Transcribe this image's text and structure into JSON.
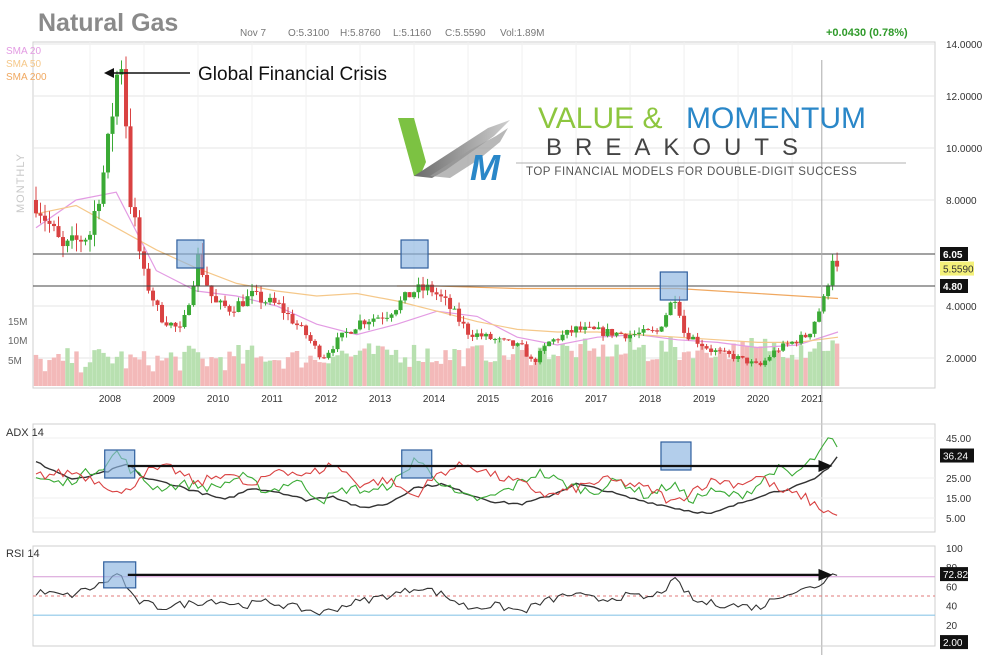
{
  "header": {
    "title": "Natural Gas",
    "date": "Nov 7",
    "open": "O:5.3100",
    "high": "H:5.8760",
    "low": "L:5.1160",
    "close": "C:5.5590",
    "volume": "Vol:1.89M",
    "change": "+0.0430 (0.78%)"
  },
  "legend": [
    {
      "label": "SMA 20",
      "color": "#e39be3"
    },
    {
      "label": "SMA 50",
      "color": "#f5c88a"
    },
    {
      "label": "SMA 200",
      "color": "#f0a860"
    }
  ],
  "timeframe_label": "MONTHLY",
  "annotation": "Global Financial Crisis",
  "logo": {
    "line1_a": "VALUE & ",
    "line1_b": "MOMENTUM",
    "line2": "BREAKOUTS",
    "tagline": "TOP FINANCIAL MODELS FOR DOUBLE-DIGIT SUCCESS"
  },
  "colors": {
    "up": "#3aaa35",
    "down": "#d94242",
    "vol_up": "#b8e0b0",
    "vol_down": "#f3b9b9",
    "box_fill": "#8ab4e0",
    "box_stroke": "#2f5f9e",
    "grid": "#e6e6e6"
  },
  "chart_data": [
    {
      "panel": "price",
      "type": "candlestick",
      "x_tick_labels": [
        "2008",
        "2009",
        "2010",
        "2011",
        "2012",
        "2013",
        "2014",
        "2015",
        "2016",
        "2017",
        "2018",
        "2019",
        "2020",
        "2021"
      ],
      "y_tick_labels": [
        "14.0000",
        "12.0000",
        "10.0000",
        "8.0000",
        "4.0000",
        "2.0000"
      ],
      "ylim": [
        1.0,
        14.0
      ],
      "horizontal_levels": [
        6.05,
        4.8
      ],
      "level_labels": [
        "6.05",
        "4.80"
      ],
      "last_price_label": "5.5590",
      "last_price": 5.559,
      "volume_tick_labels": [
        "15M",
        "10M",
        "5M"
      ],
      "series_anchors": {
        "x": [
          2007.0,
          2007.5,
          2008.0,
          2008.3,
          2008.5,
          2008.6,
          2008.75,
          2009.0,
          2009.3,
          2009.7,
          2010.0,
          2010.3,
          2010.6,
          2011.0,
          2011.5,
          2012.0,
          2012.3,
          2012.6,
          2013.0,
          2013.5,
          2014.0,
          2014.3,
          2014.6,
          2015.0,
          2015.5,
          2016.0,
          2016.2,
          2016.5,
          2017.0,
          2017.5,
          2018.0,
          2018.5,
          2018.85,
          2019.0,
          2019.5,
          2020.0,
          2020.4,
          2020.7,
          2021.0,
          2021.3,
          2021.6,
          2021.75,
          2021.85
        ],
        "price": [
          8.0,
          6.2,
          6.8,
          9.5,
          12.8,
          13.5,
          8.0,
          5.2,
          3.6,
          3.0,
          5.9,
          4.1,
          3.9,
          4.4,
          4.0,
          2.9,
          2.0,
          2.7,
          3.4,
          3.7,
          4.6,
          4.7,
          4.1,
          3.0,
          2.7,
          2.4,
          1.8,
          2.6,
          3.1,
          3.0,
          2.9,
          3.0,
          4.5,
          3.0,
          2.3,
          2.0,
          1.7,
          2.3,
          2.6,
          2.9,
          4.3,
          6.0,
          5.56
        ]
      },
      "sma_anchors": {
        "sma20": [
          7.0,
          8.0,
          8.3,
          5.4,
          4.6,
          4.4,
          4.0,
          3.3,
          2.9,
          3.3,
          3.8,
          3.6,
          2.8,
          2.5,
          2.8,
          2.9,
          2.7,
          2.6,
          2.4,
          2.5,
          3.0
        ],
        "sma50": [
          7.5,
          7.8,
          7.0,
          6.2,
          5.5,
          4.9,
          4.6,
          4.4,
          4.5,
          4.2,
          3.8,
          3.4,
          3.1,
          3.0,
          3.0,
          2.9,
          2.8,
          2.7,
          2.6,
          2.6,
          2.8
        ],
        "sma200": [
          null,
          null,
          null,
          null,
          null,
          null,
          null,
          null,
          null,
          4.8,
          4.8,
          4.75,
          4.7,
          4.7,
          4.7,
          4.7,
          4.7,
          4.6,
          4.5,
          4.4,
          4.3
        ]
      },
      "highlight_boxes": [
        {
          "x": 2009.85,
          "price": 6.05
        },
        {
          "x": 2014.0,
          "price": 6.05
        },
        {
          "x": 2018.8,
          "price": 4.8
        }
      ]
    },
    {
      "panel": "adx",
      "title": "ADX 14",
      "type": "line",
      "y_tick_labels": [
        "45.00",
        "36.24",
        "25.00",
        "15.00",
        "5.00"
      ],
      "ylim": [
        0,
        50
      ],
      "last_value_label": "36.24",
      "series": [
        {
          "name": "ADX",
          "color": "#333333",
          "anchors": [
            [
              2007.0,
              33
            ],
            [
              2007.7,
              24
            ],
            [
              2008.3,
              28
            ],
            [
              2008.7,
              32
            ],
            [
              2009.0,
              25
            ],
            [
              2009.5,
              22
            ],
            [
              2010.0,
              18
            ],
            [
              2010.5,
              14
            ],
            [
              2011.0,
              20
            ],
            [
              2011.5,
              18
            ],
            [
              2012.0,
              14
            ],
            [
              2012.5,
              16
            ],
            [
              2013.0,
              10
            ],
            [
              2013.5,
              12
            ],
            [
              2014.0,
              20
            ],
            [
              2014.5,
              22
            ],
            [
              2015.0,
              17
            ],
            [
              2015.5,
              13
            ],
            [
              2016.0,
              12
            ],
            [
              2016.5,
              16
            ],
            [
              2017.0,
              22
            ],
            [
              2017.5,
              19
            ],
            [
              2018.0,
              15
            ],
            [
              2018.5,
              12
            ],
            [
              2019.0,
              9
            ],
            [
              2019.5,
              7
            ],
            [
              2020.0,
              12
            ],
            [
              2020.5,
              17
            ],
            [
              2021.0,
              20
            ],
            [
              2021.4,
              24
            ],
            [
              2021.7,
              31
            ],
            [
              2021.85,
              36.2
            ]
          ]
        },
        {
          "name": "+DI",
          "color": "#3aaa35",
          "anchors": [
            [
              2007.0,
              25
            ],
            [
              2007.5,
              22
            ],
            [
              2008.3,
              32
            ],
            [
              2008.5,
              38
            ],
            [
              2008.8,
              28
            ],
            [
              2009.2,
              20
            ],
            [
              2009.8,
              22
            ],
            [
              2010.3,
              20
            ],
            [
              2010.8,
              26
            ],
            [
              2011.3,
              18
            ],
            [
              2011.8,
              24
            ],
            [
              2012.3,
              14
            ],
            [
              2012.8,
              20
            ],
            [
              2013.3,
              18
            ],
            [
              2013.8,
              26
            ],
            [
              2014.0,
              35
            ],
            [
              2014.3,
              28
            ],
            [
              2014.8,
              16
            ],
            [
              2015.3,
              14
            ],
            [
              2015.8,
              20
            ],
            [
              2016.3,
              28
            ],
            [
              2016.8,
              22
            ],
            [
              2017.3,
              18
            ],
            [
              2017.8,
              24
            ],
            [
              2018.3,
              16
            ],
            [
              2018.8,
              22
            ],
            [
              2019.1,
              14
            ],
            [
              2019.5,
              18
            ],
            [
              2020.0,
              16
            ],
            [
              2020.3,
              20
            ],
            [
              2020.7,
              30
            ],
            [
              2021.0,
              26
            ],
            [
              2021.3,
              32
            ],
            [
              2021.6,
              40
            ],
            [
              2021.7,
              46
            ],
            [
              2021.85,
              38
            ]
          ]
        },
        {
          "name": "-DI",
          "color": "#d94242",
          "anchors": [
            [
              2007.0,
              26
            ],
            [
              2007.7,
              28
            ],
            [
              2008.3,
              22
            ],
            [
              2008.6,
              16
            ],
            [
              2009.0,
              28
            ],
            [
              2009.5,
              30
            ],
            [
              2010.0,
              22
            ],
            [
              2010.5,
              28
            ],
            [
              2011.0,
              20
            ],
            [
              2011.5,
              30
            ],
            [
              2012.0,
              26
            ],
            [
              2012.5,
              32
            ],
            [
              2013.0,
              22
            ],
            [
              2013.5,
              24
            ],
            [
              2014.0,
              16
            ],
            [
              2014.5,
              28
            ],
            [
              2015.0,
              32
            ],
            [
              2015.5,
              26
            ],
            [
              2016.0,
              22
            ],
            [
              2016.5,
              16
            ],
            [
              2017.0,
              20
            ],
            [
              2017.5,
              24
            ],
            [
              2018.0,
              22
            ],
            [
              2018.5,
              18
            ],
            [
              2018.8,
              12
            ],
            [
              2019.2,
              20
            ],
            [
              2019.6,
              24
            ],
            [
              2020.0,
              22
            ],
            [
              2020.4,
              26
            ],
            [
              2020.8,
              18
            ],
            [
              2021.2,
              16
            ],
            [
              2021.5,
              10
            ],
            [
              2021.7,
              8
            ],
            [
              2021.85,
              5
            ]
          ]
        }
      ],
      "highlight_boxes": [
        {
          "x": 2008.55,
          "value": 32
        },
        {
          "x": 2014.05,
          "value": 32
        },
        {
          "x": 2018.85,
          "value": 36
        }
      ],
      "arrow_value": 32
    },
    {
      "panel": "rsi",
      "title": "RSI 14",
      "type": "line",
      "y_tick_labels": [
        "100",
        "80",
        "72.82",
        "60",
        "40",
        "20",
        "2.00"
      ],
      "ylim": [
        0,
        100
      ],
      "last_value_label": "72.82",
      "bottom_value_label": "2.00",
      "reference_levels": [
        70,
        50,
        30
      ],
      "series": [
        {
          "name": "RSI",
          "color": "#333333",
          "anchors": [
            [
              2007.0,
              54
            ],
            [
              2007.6,
              50
            ],
            [
              2008.2,
              62
            ],
            [
              2008.55,
              74
            ],
            [
              2008.8,
              46
            ],
            [
              2009.3,
              38
            ],
            [
              2009.8,
              42
            ],
            [
              2010.3,
              46
            ],
            [
              2010.8,
              40
            ],
            [
              2011.3,
              44
            ],
            [
              2011.8,
              38
            ],
            [
              2012.3,
              32
            ],
            [
              2012.8,
              42
            ],
            [
              2013.3,
              48
            ],
            [
              2013.8,
              54
            ],
            [
              2014.1,
              60
            ],
            [
              2014.5,
              52
            ],
            [
              2015.0,
              38
            ],
            [
              2015.5,
              40
            ],
            [
              2016.0,
              34
            ],
            [
              2016.4,
              44
            ],
            [
              2016.9,
              52
            ],
            [
              2017.4,
              46
            ],
            [
              2017.9,
              50
            ],
            [
              2018.4,
              48
            ],
            [
              2018.85,
              66
            ],
            [
              2019.2,
              44
            ],
            [
              2019.6,
              42
            ],
            [
              2020.0,
              40
            ],
            [
              2020.4,
              38
            ],
            [
              2020.8,
              52
            ],
            [
              2021.2,
              56
            ],
            [
              2021.5,
              62
            ],
            [
              2021.7,
              70
            ],
            [
              2021.78,
              80
            ],
            [
              2021.85,
              72.8
            ]
          ]
        }
      ],
      "highlight_boxes": [
        {
          "x": 2008.55,
          "value": 72
        }
      ],
      "arrow_value": 72
    }
  ]
}
